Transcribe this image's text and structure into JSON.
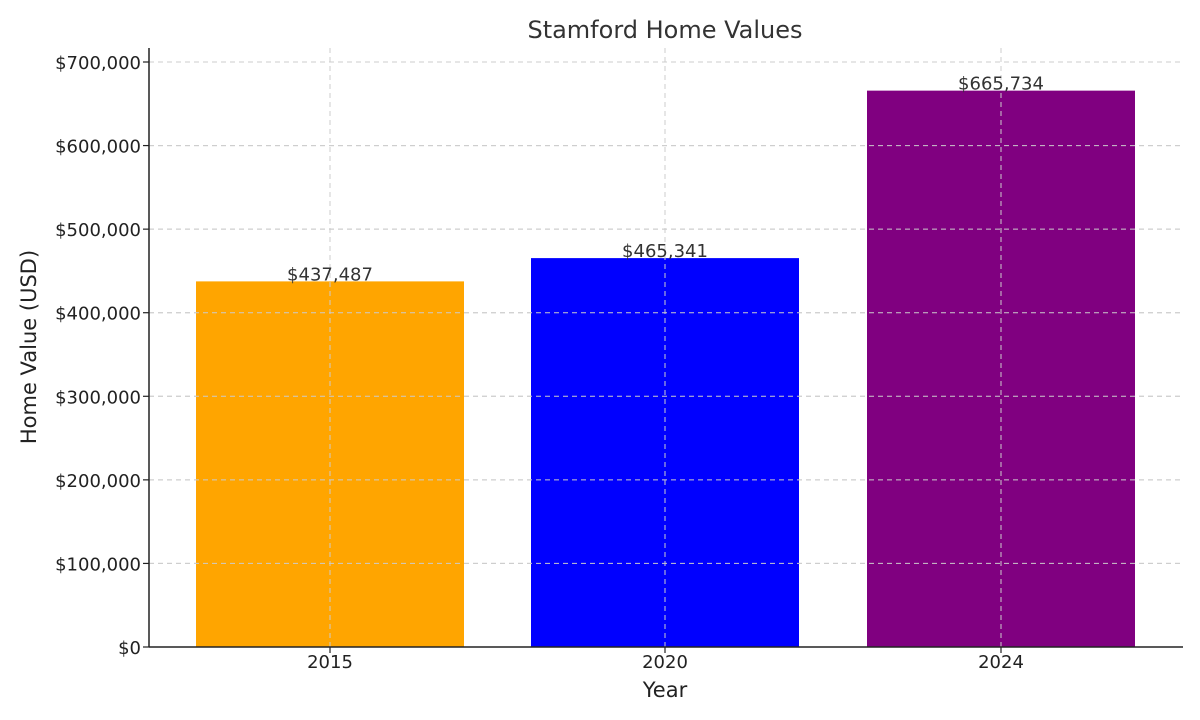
{
  "chart_data": {
    "type": "bar",
    "title": "Stamford Home Values",
    "xlabel": "Year",
    "ylabel": "Home Value (USD)",
    "categories": [
      "2015",
      "2020",
      "2024"
    ],
    "values": [
      437487,
      465341,
      665734
    ],
    "data_labels": [
      "$437,487",
      "$465,341",
      "$665,734"
    ],
    "colors": [
      "#FFA500",
      "#0000FF",
      "#800080"
    ],
    "ylim": [
      0,
      715000
    ],
    "yticks": [
      0,
      100000,
      200000,
      300000,
      400000,
      500000,
      600000,
      700000
    ],
    "ytick_labels": [
      "$0",
      "$100,000",
      "$200,000",
      "$300,000",
      "$400,000",
      "$500,000",
      "$600,000",
      "$700,000"
    ],
    "grid": true,
    "legend": "none"
  }
}
